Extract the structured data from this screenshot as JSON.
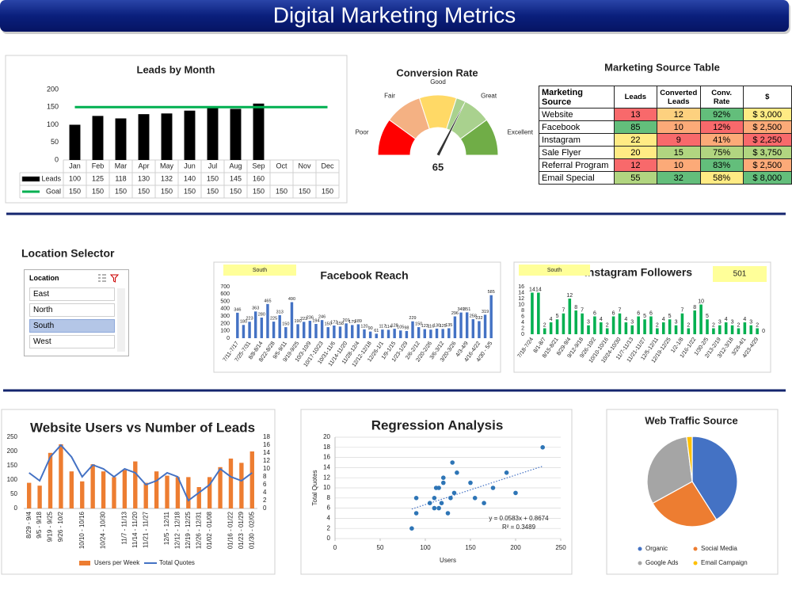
{
  "title": "Digital Marketing Metrics",
  "chart_data": [
    {
      "type": "bar",
      "title": "Leads by Month",
      "categories": [
        "Jan",
        "Feb",
        "Mar",
        "Apr",
        "May",
        "Jun",
        "Jul",
        "Aug",
        "Sep",
        "Oct",
        "Nov",
        "Dec"
      ],
      "series": [
        {
          "name": "Leads",
          "type": "bar",
          "color": "#000000",
          "values": [
            100,
            125,
            118,
            130,
            132,
            140,
            150,
            145,
            160,
            null,
            null,
            null
          ]
        },
        {
          "name": "Goal",
          "type": "line",
          "color": "#00b050",
          "values": [
            150,
            150,
            150,
            150,
            150,
            150,
            150,
            150,
            150,
            150,
            150,
            150
          ]
        }
      ],
      "ylim": [
        0,
        200
      ],
      "yticks": [
        0,
        50,
        100,
        150,
        200
      ],
      "grid": false,
      "data_table": true
    },
    {
      "type": "gauge",
      "title": "Conversion Rate",
      "value": 65,
      "lim": [
        0,
        100
      ],
      "bands": [
        {
          "label": "Poor",
          "color": "#ff0000"
        },
        {
          "label": "Fair",
          "color": "#f4b183"
        },
        {
          "label": "Good",
          "color": "#ffd966"
        },
        {
          "label": "Great",
          "color": "#a9d18e"
        },
        {
          "label": "Excellent",
          "color": "#70ad47"
        }
      ]
    },
    {
      "type": "bar",
      "title": "Facebook Reach",
      "filter": "South",
      "categories": [
        "7/11-7/17",
        null,
        "7/25-7/31",
        null,
        "8/8-8/14",
        null,
        "8/22-8/28",
        null,
        "9/5-9/11",
        null,
        "9/19-9/25",
        null,
        "10/3-10/9",
        null,
        "10/17-10/23",
        null,
        "10/31-11/6",
        null,
        "11/14-11/20",
        null,
        "11/28-12/4",
        null,
        "12/12-12/18",
        null,
        "12/26-1/1",
        null,
        "1/9-1/15",
        null,
        "1/23-1/29",
        null,
        "2/6-2/12",
        null,
        "2/20-2/26",
        null,
        "3/6-3/12",
        null,
        "3/20-3/26",
        null,
        "4/3-4/9",
        null,
        "4/16-4/22",
        null,
        "4/30 - 5/5"
      ],
      "values": [
        346,
        180,
        223,
        363,
        280,
        465,
        225,
        313,
        150,
        490,
        190,
        222,
        236,
        194,
        246,
        150,
        172,
        158,
        201,
        179,
        189,
        120,
        90,
        61,
        117,
        114,
        128,
        105,
        98,
        229,
        150,
        123,
        116,
        130,
        125,
        135,
        296,
        349,
        351,
        258,
        232,
        319,
        585
      ],
      "color": "#4472c4",
      "ylim": [
        0,
        700
      ],
      "yticks": [
        0,
        100,
        200,
        300,
        400,
        500,
        600,
        700
      ],
      "grid": false,
      "data_labels": true
    },
    {
      "type": "bar",
      "title": "Instagram Followers",
      "filter": "South",
      "total": 501,
      "categories": [
        "7/18-7/24",
        null,
        "8/1-8/7",
        null,
        "8/15-8/21",
        null,
        "8/29-9/4",
        null,
        "9/12-9/18",
        null,
        "9/26-10/2",
        null,
        "10/10-10/16",
        null,
        "10/24-10/30",
        null,
        "11/7-11/13",
        null,
        "11/21-11/27",
        null,
        "12/5-12/11",
        null,
        "12/19-12/25",
        null,
        "1/2-1/8",
        null,
        "1/16-1/22",
        null,
        "1/30-2/5",
        null,
        "2/13-2/19",
        null,
        "3/12-3/18",
        null,
        "3/26-4/1",
        null,
        "4/23-4/29",
        null
      ],
      "values": [
        14,
        14,
        2,
        4,
        5,
        7,
        12,
        8,
        7,
        3,
        6,
        4,
        2,
        6,
        7,
        4,
        3,
        6,
        5,
        6,
        2,
        4,
        5,
        3,
        7,
        2,
        8,
        10,
        5,
        2,
        3,
        4,
        3,
        2,
        4,
        3,
        2,
        0
      ],
      "color": "#00b050",
      "ylim": [
        0,
        16
      ],
      "yticks": [
        0,
        2,
        4,
        6,
        8,
        10,
        12,
        14,
        16
      ],
      "grid": false,
      "data_labels": true
    },
    {
      "type": "combo",
      "title": "Website Users vs Number of Leads",
      "categories": [
        "8/29 - 9/4",
        "9/5 - 9/18",
        "9/19 - 9/25",
        "9/26 - 10/2",
        null,
        "10/10 - 10/16",
        null,
        "10/24 - 10/30",
        null,
        "11/7 - 11/13",
        "11/14 - 11/20",
        "11/21 - 11/27",
        null,
        "12/5 - 12/11",
        "12/12 - 12/18",
        "12/19 - 12/25",
        "12/26 - 12/31",
        "01/02 - 01/08",
        null,
        "01/16 - 01/22",
        "01/23 - 01/29",
        "01/30 - 02/05"
      ],
      "series": [
        {
          "name": "Users per Week",
          "type": "bar",
          "color": "#ed7d31",
          "values": [
            90,
            80,
            195,
            225,
            130,
            95,
            155,
            130,
            110,
            135,
            165,
            90,
            130,
            115,
            110,
            110,
            75,
            110,
            145,
            175,
            160,
            200
          ]
        },
        {
          "name": "Total Quotes",
          "type": "line",
          "axis": "y2",
          "color": "#4472c4",
          "values": [
            9,
            7,
            13,
            16,
            13,
            8,
            11,
            10,
            8,
            10,
            9,
            6,
            7,
            9,
            8,
            2,
            4,
            6,
            10,
            8,
            7,
            9
          ]
        }
      ],
      "ylim": [
        0,
        250
      ],
      "yticks": [
        0,
        50,
        100,
        150,
        200,
        250
      ],
      "y2lim": [
        0,
        18
      ],
      "y2ticks": [
        0,
        2,
        4,
        6,
        8,
        10,
        12,
        14,
        16,
        18
      ],
      "legend": "bottom"
    },
    {
      "type": "scatter",
      "title": "Regression Analysis",
      "x_label": "Users",
      "y_label": "Total Quotes",
      "x": [
        85,
        90,
        90,
        105,
        110,
        110,
        112,
        115,
        115,
        118,
        120,
        120,
        125,
        128,
        130,
        132,
        135,
        150,
        155,
        165,
        175,
        190,
        200,
        230
      ],
      "values": [
        2,
        5,
        8,
        7,
        6,
        8,
        10,
        10,
        6,
        7,
        12,
        11,
        5,
        8,
        15,
        9,
        13,
        11,
        8,
        7,
        10,
        13,
        9,
        18
      ],
      "color": "#2e75b6",
      "xlim": [
        0,
        250
      ],
      "xticks": [
        0,
        50,
        100,
        150,
        200,
        250
      ],
      "ylim": [
        0,
        20
      ],
      "yticks": [
        0,
        2,
        4,
        6,
        8,
        10,
        12,
        14,
        16,
        18,
        20
      ],
      "grid": true,
      "trendline": {
        "slope": 0.0583,
        "intercept": 0.8674
      },
      "annotations": [
        "y = 0.0583x + 0.8674",
        "R² = 0.3489"
      ]
    },
    {
      "type": "pie",
      "title": "Web Traffic Source",
      "categories": [
        "Organic",
        "Social Media",
        "Google Ads",
        "Email Campaign"
      ],
      "values": [
        41,
        26,
        31,
        2
      ],
      "colors": [
        "#4472c4",
        "#ed7d31",
        "#a5a5a5",
        "#ffc000"
      ],
      "legend": "bottom"
    }
  ],
  "source_table": {
    "title": "Marketing Source Table",
    "columns": [
      "Marketing Source",
      "Leads",
      "Converted Leads",
      "Conv. Rate",
      "$"
    ],
    "rows": [
      [
        "Website",
        "13",
        "12",
        "92%",
        "$ 3,000"
      ],
      [
        "Facebook",
        "85",
        "10",
        "12%",
        "$ 2,500"
      ],
      [
        "Instagram",
        "22",
        "9",
        "41%",
        "$ 2,250"
      ],
      [
        "Sale Flyer",
        "20",
        "15",
        "75%",
        "$ 3,750"
      ],
      [
        "Referral Program",
        "12",
        "10",
        "83%",
        "$ 2,500"
      ],
      [
        "Email Special",
        "55",
        "32",
        "58%",
        "$ 8,000"
      ]
    ],
    "cell_colors": [
      [
        "#f8696b",
        "#fdd17f",
        "#63be7b",
        "#ffeb84"
      ],
      [
        "#63be7b",
        "#fcaa78",
        "#f8696b",
        "#fcaa78"
      ],
      [
        "#ffeb84",
        "#f8696b",
        "#fcaa78",
        "#f8696b"
      ],
      [
        "#ffeb84",
        "#b1d580",
        "#b1d580",
        "#b1d580"
      ],
      [
        "#f8696b",
        "#fcaa78",
        "#63be7b",
        "#fcaa78"
      ],
      [
        "#b1d580",
        "#63be7b",
        "#ffeb84",
        "#63be7b"
      ]
    ]
  },
  "location_selector": {
    "title": "Location Selector",
    "header": "Location",
    "items": [
      "East",
      "North",
      "South",
      "West"
    ],
    "selected": "South"
  }
}
